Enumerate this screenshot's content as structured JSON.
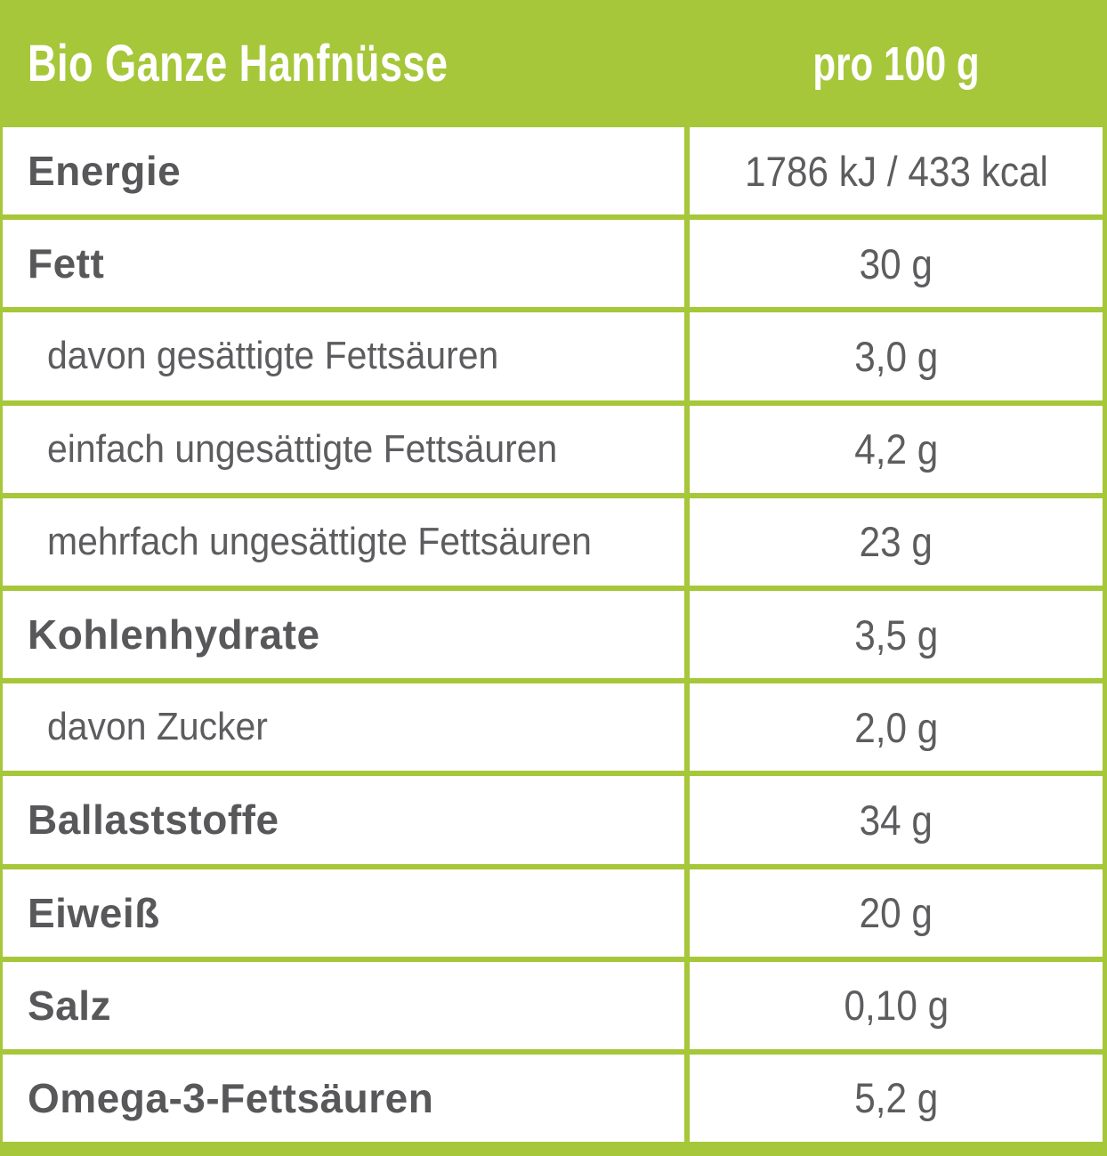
{
  "header": {
    "title": "Bio Ganze Hanfnüsse",
    "per_label": "pro 100 g"
  },
  "colors": {
    "brand_green": "#a6c739",
    "label_gray": "#58585a",
    "value_gray": "#5d5d60",
    "cell_white": "#ffffff"
  },
  "rows": [
    {
      "label": "Energie",
      "value": "1786 kJ / 433 kcal",
      "style": "bold"
    },
    {
      "label": "Fett",
      "value": "30 g",
      "style": "bold"
    },
    {
      "label": "davon gesättigte Fettsäuren",
      "value": "3,0 g",
      "style": "sub"
    },
    {
      "label": "einfach ungesättigte Fettsäuren",
      "value": "4,2 g",
      "style": "sub"
    },
    {
      "label": "mehrfach ungesättigte Fettsäuren",
      "value": "23 g",
      "style": "sub"
    },
    {
      "label": "Kohlenhydrate",
      "value": "3,5 g",
      "style": "bold"
    },
    {
      "label": "davon Zucker",
      "value": "2,0 g",
      "style": "sub"
    },
    {
      "label": "Ballaststoffe",
      "value": "34 g",
      "style": "bold"
    },
    {
      "label": "Eiweiß",
      "value": "20 g",
      "style": "bold"
    },
    {
      "label": "Salz",
      "value": "0,10 g",
      "style": "bold"
    },
    {
      "label": "Omega-3-Fettsäuren",
      "value": "5,2 g",
      "style": "bold"
    }
  ]
}
